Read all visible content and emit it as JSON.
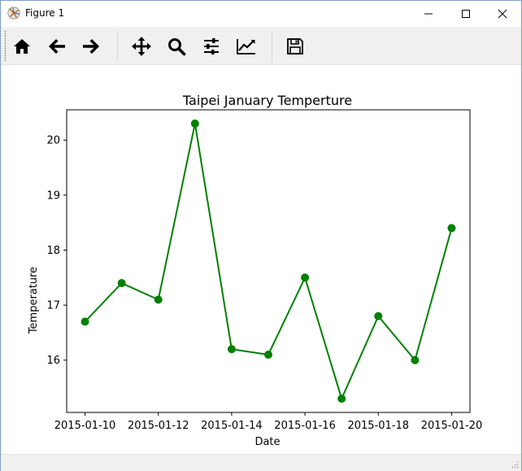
{
  "window": {
    "title": "Figure 1",
    "minimize_glyph": "—",
    "maximize_glyph": "☐",
    "close_glyph": "✕"
  },
  "toolbar": {
    "buttons": [
      {
        "name": "home-button",
        "icon": "home-icon"
      },
      {
        "name": "back-button",
        "icon": "arrow-left-icon"
      },
      {
        "name": "forward-button",
        "icon": "arrow-right-icon"
      },
      {
        "name": "pan-button",
        "icon": "move-icon"
      },
      {
        "name": "zoom-button",
        "icon": "magnifier-icon"
      },
      {
        "name": "configure-subplots-button",
        "icon": "sliders-icon"
      },
      {
        "name": "edit-axis-button",
        "icon": "line-chart-icon"
      },
      {
        "name": "save-button",
        "icon": "floppy-disk-icon"
      }
    ]
  },
  "colors": {
    "line": "#008000",
    "titlebar": "#ffffff",
    "toolbar": "#f0f0f0"
  },
  "chart_data": {
    "type": "line",
    "title": "Taipei January Temperture",
    "xlabel": "Date",
    "ylabel": "Temperature",
    "x": [
      "2015-01-10",
      "2015-01-11",
      "2015-01-12",
      "2015-01-13",
      "2015-01-14",
      "2015-01-15",
      "2015-01-16",
      "2015-01-17",
      "2015-01-18",
      "2015-01-19",
      "2015-01-20"
    ],
    "series": [
      {
        "values": [
          16.7,
          17.4,
          17.1,
          20.3,
          16.2,
          16.1,
          17.5,
          15.3,
          16.8,
          16.0,
          18.4
        ],
        "color": "#008000",
        "marker": "circle"
      }
    ],
    "x_ticks": [
      "2015-01-10",
      "2015-01-12",
      "2015-01-14",
      "2015-01-16",
      "2015-01-18",
      "2015-01-20"
    ],
    "y_ticks": [
      "16",
      "17",
      "18",
      "19",
      "20"
    ],
    "y_tick_values": [
      16,
      17,
      18,
      19,
      20
    ],
    "ylim": [
      15.05,
      20.55
    ],
    "grid": false,
    "legend": "none"
  }
}
